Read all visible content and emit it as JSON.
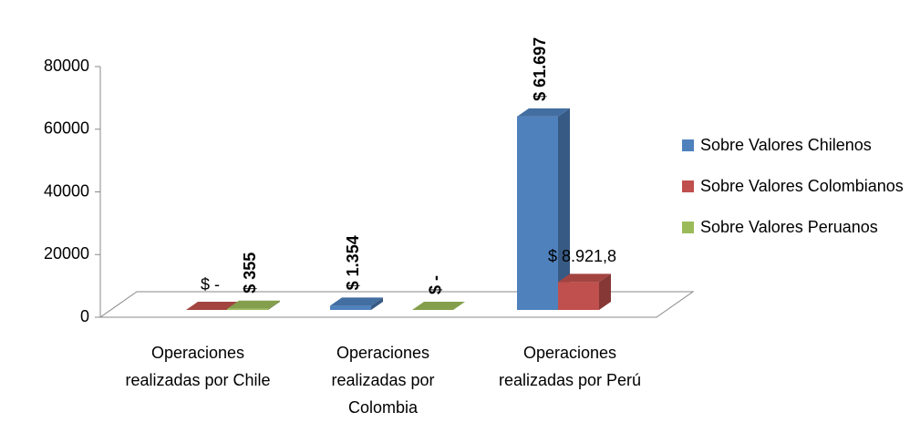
{
  "chart_data": {
    "type": "bar3d",
    "categories": [
      "Operaciones realizadas por Chile",
      "Operaciones realizadas por Colombia",
      "Operaciones realizadas por Perú"
    ],
    "series": [
      {
        "name": "Sobre Valores Chilenos",
        "color": "#4f81bd",
        "values": [
          null,
          1354,
          61697
        ],
        "value_labels": [
          null,
          "$ 1.354",
          "$ 61.697"
        ]
      },
      {
        "name": "Sobre Valores Colombianos",
        "color": "#c0504d",
        "values": [
          0,
          null,
          8921.8
        ],
        "value_labels": [
          "$ -",
          null,
          "$ 8.921,8"
        ]
      },
      {
        "name": "Sobre Valores Peruanos",
        "color": "#9bbb59",
        "values": [
          355,
          0,
          null
        ],
        "value_labels": [
          "$ 355",
          "$ -",
          null
        ]
      }
    ],
    "ylim": [
      0,
      80000
    ],
    "yticks": [
      0,
      20000,
      40000,
      60000,
      80000
    ],
    "legend": "right"
  }
}
